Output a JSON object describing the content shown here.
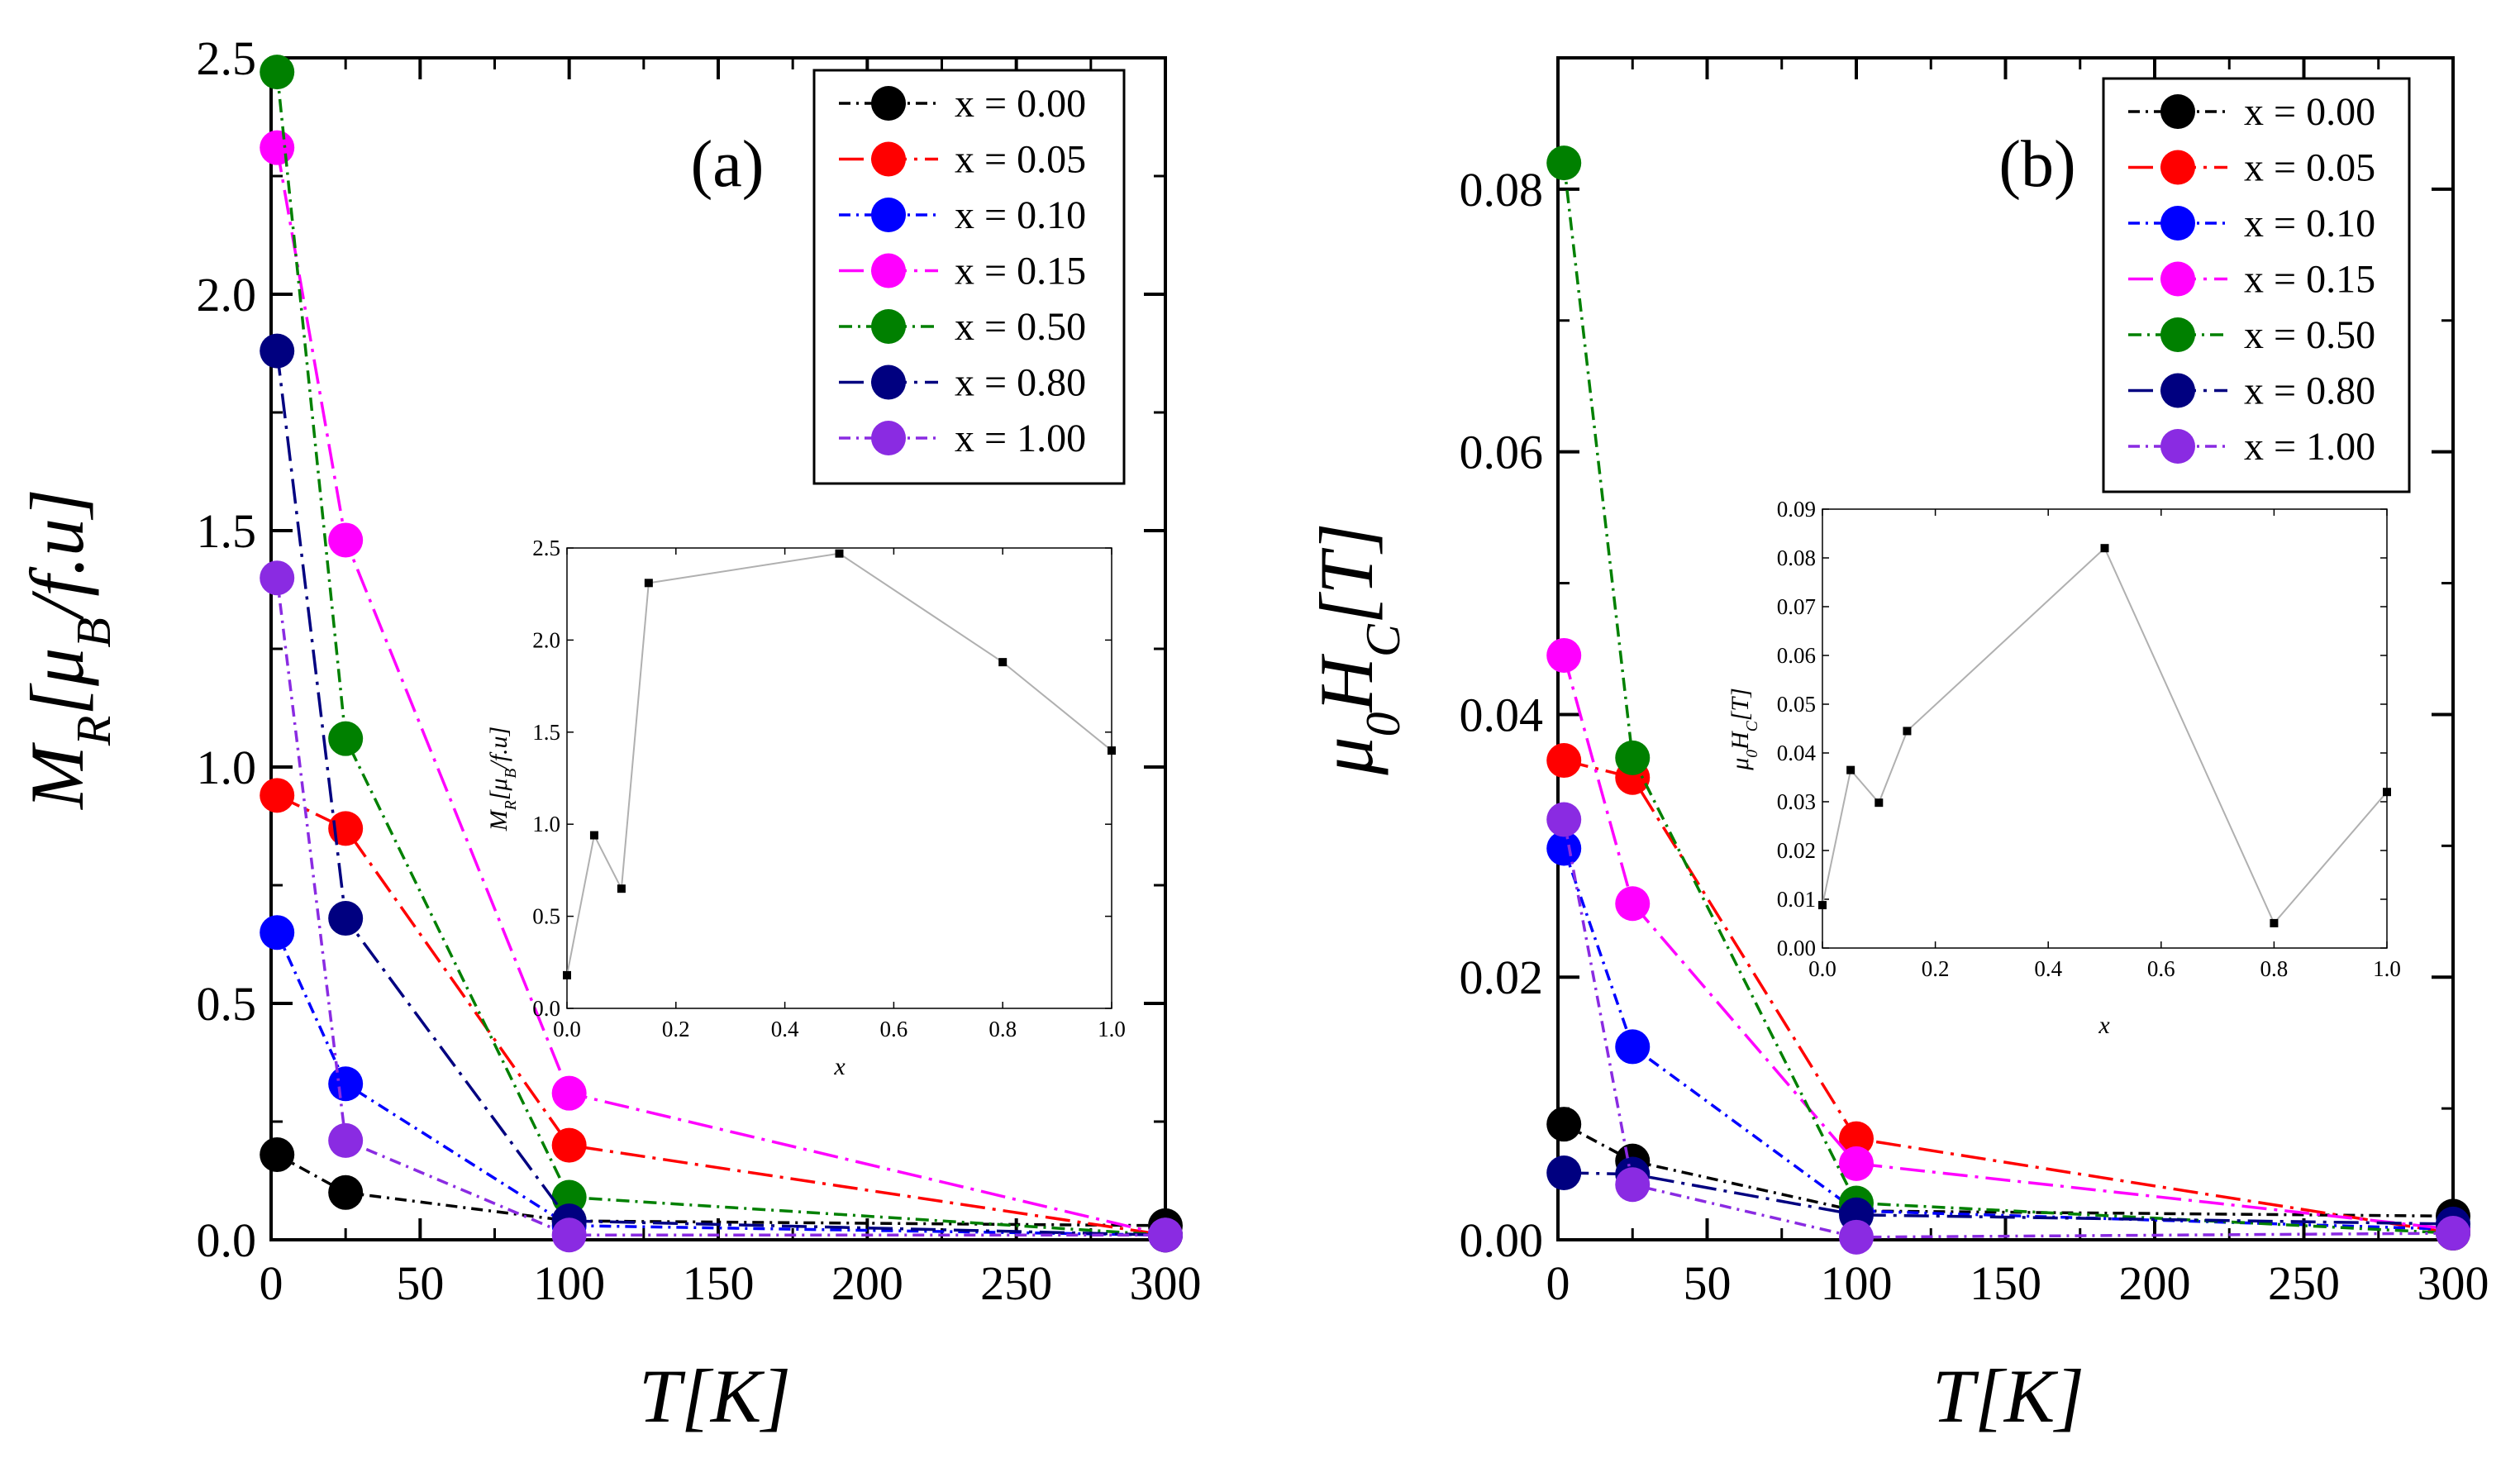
{
  "chart_data": [
    {
      "type": "line",
      "panel_label": "(a)",
      "xlabel": "T[K]",
      "ylabel": "M_R[μ_B/f.u]",
      "xlim": [
        0,
        300
      ],
      "ylim": [
        0,
        2.5
      ],
      "xticks": [
        "0",
        "50",
        "100",
        "150",
        "200",
        "250",
        "300"
      ],
      "yticks": [
        "0.0",
        "0.5",
        "1.0",
        "1.5",
        "2.0",
        "2.5"
      ],
      "legend_position": "top-right",
      "x": [
        2,
        25,
        100,
        300
      ],
      "series": [
        {
          "name": "x = 0.00",
          "color": "#000000",
          "values": [
            0.18,
            0.1,
            0.04,
            0.03
          ]
        },
        {
          "name": "x = 0.05",
          "color": "#ff0000",
          "values": [
            0.94,
            0.87,
            0.2,
            0.01
          ]
        },
        {
          "name": "x = 0.10",
          "color": "#0000ff",
          "values": [
            0.65,
            0.33,
            0.03,
            0.01
          ]
        },
        {
          "name": "x = 0.15",
          "color": "#ff00ff",
          "values": [
            2.31,
            1.48,
            0.31,
            0.01
          ]
        },
        {
          "name": "x = 0.50",
          "color": "#008000",
          "values": [
            2.47,
            1.06,
            0.09,
            0.01
          ]
        },
        {
          "name": "x = 0.80",
          "color": "#000080",
          "values": [
            1.88,
            0.68,
            0.04,
            0.01
          ]
        },
        {
          "name": "x = 1.00",
          "color": "#8a2be2",
          "values": [
            1.4,
            0.21,
            0.01,
            0.01
          ]
        }
      ],
      "inset": {
        "type": "line",
        "xlabel": "x",
        "ylabel": "M_R[μ_B/f.u]",
        "xlim": [
          0,
          1
        ],
        "ylim": [
          0,
          2.5
        ],
        "xticks": [
          "0.0",
          "0.2",
          "0.4",
          "0.6",
          "0.8",
          "1.0"
        ],
        "yticks": [
          "0.0",
          "0.5",
          "1.0",
          "1.5",
          "2.0",
          "2.5"
        ],
        "x": [
          0.0,
          0.05,
          0.1,
          0.15,
          0.5,
          0.8,
          1.0
        ],
        "values": [
          0.18,
          0.94,
          0.65,
          2.31,
          2.47,
          1.88,
          1.4
        ]
      }
    },
    {
      "type": "line",
      "panel_label": "(b)",
      "xlabel": "T[K]",
      "ylabel": "μ_0H_C[T]",
      "xlim": [
        0,
        300
      ],
      "ylim": [
        0,
        0.09
      ],
      "xticks": [
        "0",
        "50",
        "100",
        "150",
        "200",
        "250",
        "300"
      ],
      "yticks": [
        "0.00",
        "0.02",
        "0.04",
        "0.06",
        "0.08"
      ],
      "legend_position": "top-right",
      "x": [
        2,
        25,
        100,
        300
      ],
      "series": [
        {
          "name": "x = 0.00",
          "color": "#000000",
          "values": [
            0.0088,
            0.006,
            0.0022,
            0.0018
          ]
        },
        {
          "name": "x = 0.05",
          "color": "#ff0000",
          "values": [
            0.0365,
            0.0352,
            0.0077,
            0.0005
          ]
        },
        {
          "name": "x = 0.10",
          "color": "#0000ff",
          "values": [
            0.0298,
            0.0147,
            0.0022,
            0.0008
          ]
        },
        {
          "name": "x = 0.15",
          "color": "#ff00ff",
          "values": [
            0.0445,
            0.0256,
            0.0058,
            0.0008
          ]
        },
        {
          "name": "x = 0.50",
          "color": "#008000",
          "values": [
            0.082,
            0.0367,
            0.0028,
            0.0005
          ]
        },
        {
          "name": "x = 0.80",
          "color": "#000080",
          "values": [
            0.0051,
            0.005,
            0.0019,
            0.0012
          ]
        },
        {
          "name": "x = 1.00",
          "color": "#8a2be2",
          "values": [
            0.032,
            0.0042,
            0.0002,
            0.0005
          ]
        }
      ],
      "inset": {
        "type": "line",
        "xlabel": "x",
        "ylabel": "μ_0H_C[T]",
        "xlim": [
          0,
          1
        ],
        "ylim": [
          0,
          0.09
        ],
        "xticks": [
          "0.0",
          "0.2",
          "0.4",
          "0.6",
          "0.8",
          "1.0"
        ],
        "yticks": [
          "0.00",
          "0.01",
          "0.02",
          "0.03",
          "0.04",
          "0.05",
          "0.06",
          "0.07",
          "0.08",
          "0.09"
        ],
        "x": [
          0.0,
          0.05,
          0.1,
          0.15,
          0.5,
          0.8,
          1.0
        ],
        "values": [
          0.0088,
          0.0365,
          0.0298,
          0.0445,
          0.082,
          0.0051,
          0.032
        ]
      }
    }
  ]
}
